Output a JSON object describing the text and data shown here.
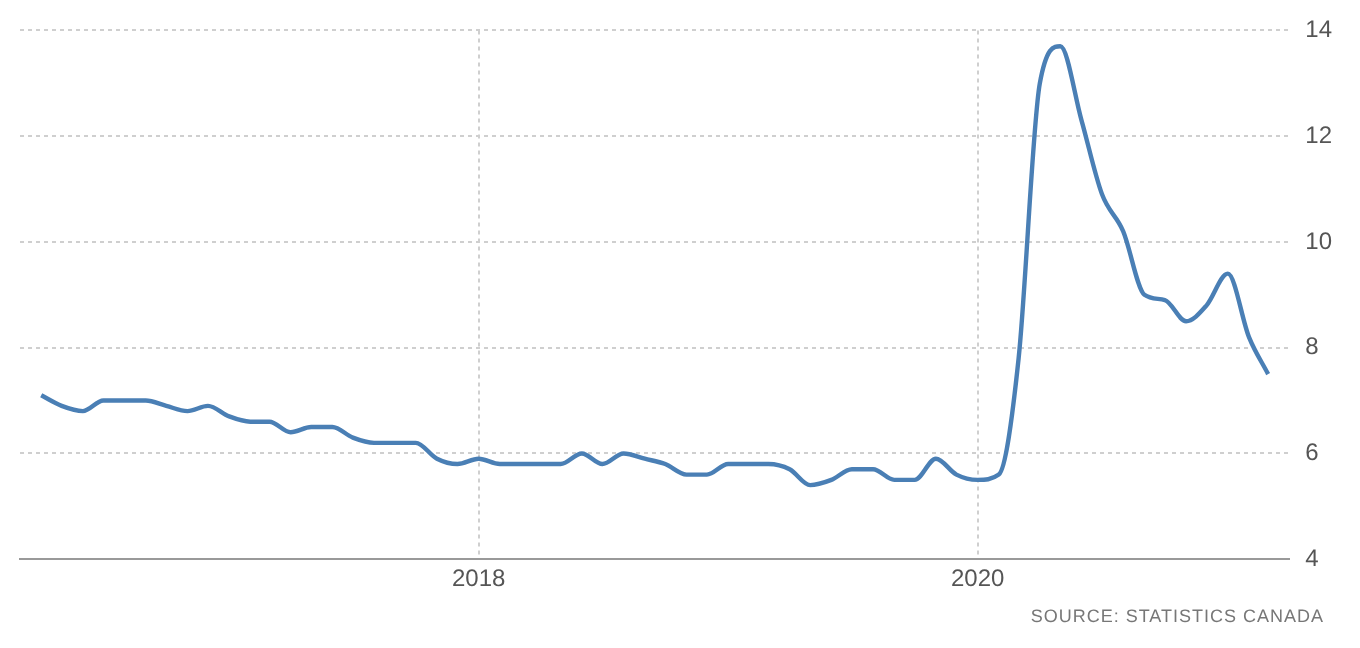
{
  "chart_data": {
    "type": "line",
    "annotations": [
      "SOURCE: STATISTICS CANADA"
    ],
    "x": [
      "2016-04",
      "2016-05",
      "2016-06",
      "2016-07",
      "2016-08",
      "2016-09",
      "2016-10",
      "2016-11",
      "2016-12",
      "2017-01",
      "2017-02",
      "2017-03",
      "2017-04",
      "2017-05",
      "2017-06",
      "2017-07",
      "2017-08",
      "2017-09",
      "2017-10",
      "2017-11",
      "2017-12",
      "2018-01",
      "2018-02",
      "2018-03",
      "2018-04",
      "2018-05",
      "2018-06",
      "2018-07",
      "2018-08",
      "2018-09",
      "2018-10",
      "2018-11",
      "2018-12",
      "2019-01",
      "2019-02",
      "2019-03",
      "2019-04",
      "2019-05",
      "2019-06",
      "2019-07",
      "2019-08",
      "2019-09",
      "2019-10",
      "2019-11",
      "2019-12",
      "2020-01",
      "2020-02",
      "2020-03",
      "2020-04",
      "2020-05",
      "2020-06",
      "2020-07",
      "2020-08",
      "2020-09",
      "2020-10",
      "2020-11",
      "2020-12",
      "2021-01",
      "2021-02",
      "2021-03"
    ],
    "series": [
      {
        "color": "#4a7fb5",
        "values": [
          7.1,
          6.9,
          6.8,
          7.0,
          7.0,
          7.0,
          6.9,
          6.8,
          6.9,
          6.7,
          6.6,
          6.6,
          6.4,
          6.5,
          6.5,
          6.3,
          6.2,
          6.2,
          6.2,
          5.9,
          5.8,
          5.9,
          5.8,
          5.8,
          5.8,
          5.8,
          6.0,
          5.8,
          6.0,
          5.9,
          5.8,
          5.6,
          5.6,
          5.8,
          5.8,
          5.8,
          5.7,
          5.4,
          5.5,
          5.7,
          5.7,
          5.5,
          5.5,
          5.9,
          5.6,
          5.5,
          5.6,
          7.8,
          13.0,
          13.7,
          12.3,
          10.9,
          10.2,
          9.0,
          8.9,
          8.5,
          8.8,
          9.4,
          8.2,
          7.5
        ]
      }
    ],
    "xlim": [
      "2016-03",
      "2021-04"
    ],
    "xticks": [
      "2018",
      "2020"
    ],
    "ylim": [
      4,
      14
    ],
    "yticks": [
      4,
      6,
      8,
      10,
      12,
      14
    ],
    "grid": true,
    "legend": false,
    "marker": "none",
    "line_style": "solid"
  }
}
